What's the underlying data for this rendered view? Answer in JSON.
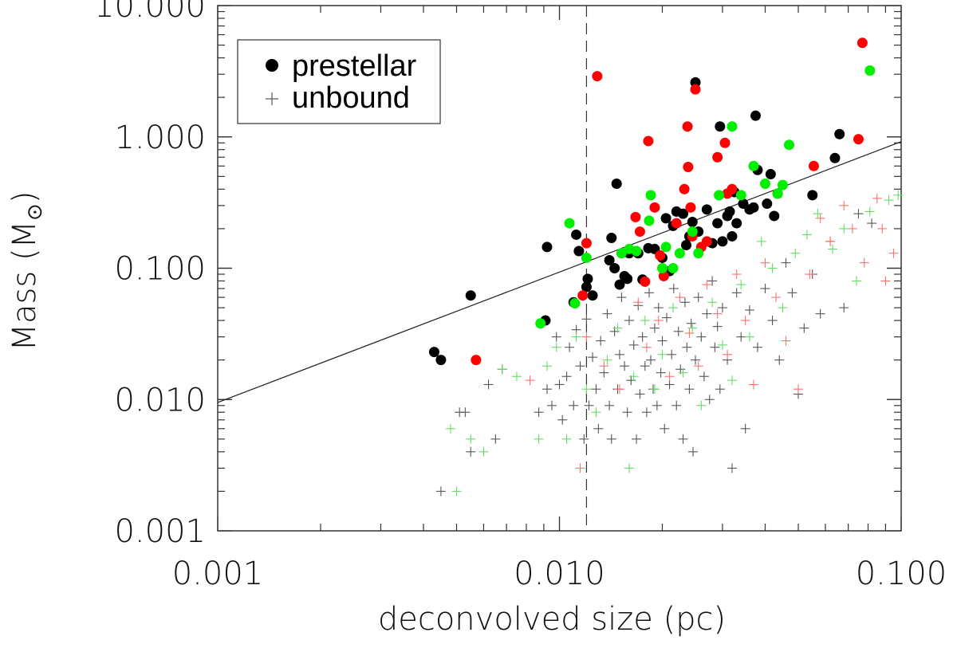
{
  "chart_data": {
    "type": "scatter",
    "xscale": "log",
    "yscale": "log",
    "xlim": [
      0.001,
      0.1
    ],
    "ylim": [
      0.001,
      10
    ],
    "xlabel": "deconvolved size (pc)",
    "ylabel": "Mass (M⊙)",
    "ylabel_main": "Mass (M",
    "ylabel_end": ")",
    "x_tick_labels": [
      "0.001",
      "0.010",
      "0.100"
    ],
    "x_ticks": [
      0.001,
      0.01,
      0.1
    ],
    "y_tick_labels": [
      "0.001",
      "0.010",
      "0.100",
      "1.000",
      "10.000"
    ],
    "y_ticks": [
      0.001,
      0.01,
      0.1,
      1,
      10
    ],
    "vertical_line_x": 0.012,
    "reference_line": [
      [
        0.001,
        0.0095
      ],
      [
        0.1,
        0.92
      ]
    ],
    "legend": {
      "position": "top-left",
      "entries": [
        {
          "label": "prestellar",
          "marker": "filled-circle"
        },
        {
          "label": "unbound",
          "marker": "plus"
        }
      ]
    },
    "colors": {
      "black": "#000000",
      "red": "#ff0000",
      "green": "#00ee00",
      "grey": "#555555",
      "light_red": "#ff7070",
      "light_green": "#66dd66"
    },
    "series": [
      {
        "name": "prestellar (black)",
        "marker": "circle",
        "color": "black",
        "points": [
          [
            0.0043,
            0.023
          ],
          [
            0.0045,
            0.02
          ],
          [
            0.0055,
            0.062
          ],
          [
            0.0091,
            0.04
          ],
          [
            0.0092,
            0.145
          ],
          [
            0.011,
            0.055
          ],
          [
            0.0112,
            0.18
          ],
          [
            0.0114,
            0.135
          ],
          [
            0.012,
            0.072
          ],
          [
            0.0121,
            0.083
          ],
          [
            0.0125,
            0.062
          ],
          [
            0.014,
            0.115
          ],
          [
            0.0142,
            0.17
          ],
          [
            0.0145,
            0.1
          ],
          [
            0.0147,
            0.44
          ],
          [
            0.015,
            0.075
          ],
          [
            0.0155,
            0.087
          ],
          [
            0.0158,
            0.083
          ],
          [
            0.016,
            0.13
          ],
          [
            0.017,
            0.13
          ],
          [
            0.0175,
            0.082
          ],
          [
            0.0182,
            0.142
          ],
          [
            0.019,
            0.14
          ],
          [
            0.02,
            0.12
          ],
          [
            0.0205,
            0.24
          ],
          [
            0.021,
            0.095
          ],
          [
            0.0215,
            0.21
          ],
          [
            0.022,
            0.27
          ],
          [
            0.023,
            0.26
          ],
          [
            0.0235,
            0.15
          ],
          [
            0.024,
            0.175
          ],
          [
            0.0245,
            0.225
          ],
          [
            0.025,
            2.6
          ],
          [
            0.0255,
            0.19
          ],
          [
            0.027,
            0.28
          ],
          [
            0.028,
            0.155
          ],
          [
            0.029,
            0.22
          ],
          [
            0.0295,
            1.2
          ],
          [
            0.03,
            0.16
          ],
          [
            0.031,
            0.25
          ],
          [
            0.0315,
            0.27
          ],
          [
            0.032,
            0.175
          ],
          [
            0.0325,
            0.38
          ],
          [
            0.033,
            0.22
          ],
          [
            0.0345,
            0.31
          ],
          [
            0.036,
            0.28
          ],
          [
            0.037,
            0.29
          ],
          [
            0.0375,
            1.45
          ],
          [
            0.038,
            0.56
          ],
          [
            0.0405,
            0.31
          ],
          [
            0.0415,
            0.52
          ],
          [
            0.0425,
            0.25
          ],
          [
            0.0435,
            0.37
          ],
          [
            0.055,
            0.36
          ],
          [
            0.064,
            0.69
          ],
          [
            0.066,
            1.05
          ]
        ]
      },
      {
        "name": "prestellar (red)",
        "marker": "circle",
        "color": "red",
        "points": [
          [
            0.0057,
            0.02
          ],
          [
            0.0117,
            0.062
          ],
          [
            0.012,
            0.155
          ],
          [
            0.0129,
            2.9
          ],
          [
            0.0167,
            0.245
          ],
          [
            0.0172,
            0.19
          ],
          [
            0.0178,
            0.079
          ],
          [
            0.0182,
            0.93
          ],
          [
            0.019,
            0.29
          ],
          [
            0.0197,
            0.125
          ],
          [
            0.0202,
            0.087
          ],
          [
            0.022,
            0.22
          ],
          [
            0.0232,
            0.4
          ],
          [
            0.0237,
            1.2
          ],
          [
            0.0238,
            0.59
          ],
          [
            0.0242,
            0.29
          ],
          [
            0.0245,
            0.175
          ],
          [
            0.025,
            2.3
          ],
          [
            0.026,
            0.145
          ],
          [
            0.027,
            0.16
          ],
          [
            0.029,
            0.7
          ],
          [
            0.0305,
            0.9
          ],
          [
            0.031,
            0.37
          ],
          [
            0.032,
            0.4
          ],
          [
            0.0555,
            0.6
          ],
          [
            0.075,
            0.96
          ],
          [
            0.077,
            5.2
          ]
        ]
      },
      {
        "name": "prestellar (green)",
        "marker": "circle",
        "color": "green",
        "points": [
          [
            0.0088,
            0.038
          ],
          [
            0.0107,
            0.22
          ],
          [
            0.0111,
            0.054
          ],
          [
            0.012,
            0.12
          ],
          [
            0.0152,
            0.13
          ],
          [
            0.016,
            0.14
          ],
          [
            0.0168,
            0.135
          ],
          [
            0.0183,
            0.23
          ],
          [
            0.0185,
            0.36
          ],
          [
            0.02,
            0.1
          ],
          [
            0.0205,
            0.145
          ],
          [
            0.0215,
            0.1
          ],
          [
            0.0225,
            0.13
          ],
          [
            0.0245,
            0.19
          ],
          [
            0.0255,
            0.13
          ],
          [
            0.0293,
            0.36
          ],
          [
            0.032,
            1.2
          ],
          [
            0.034,
            0.36
          ],
          [
            0.037,
            0.6
          ],
          [
            0.04,
            0.44
          ],
          [
            0.0435,
            0.37
          ],
          [
            0.045,
            0.43
          ],
          [
            0.047,
            0.87
          ],
          [
            0.081,
            3.2
          ]
        ]
      },
      {
        "name": "unbound (grey)",
        "marker": "plus",
        "color": "grey",
        "points": [
          [
            0.0045,
            0.002
          ],
          [
            0.0051,
            0.008
          ],
          [
            0.0053,
            0.008
          ],
          [
            0.0055,
            0.004
          ],
          [
            0.0062,
            0.013
          ],
          [
            0.0065,
            0.005
          ],
          [
            0.0068,
            0.017
          ],
          [
            0.0087,
            0.008
          ],
          [
            0.0092,
            0.012
          ],
          [
            0.0095,
            0.009
          ],
          [
            0.0098,
            0.03
          ],
          [
            0.01,
            0.013
          ],
          [
            0.0102,
            0.007
          ],
          [
            0.0105,
            0.015
          ],
          [
            0.0107,
            0.025
          ],
          [
            0.011,
            0.009
          ],
          [
            0.0112,
            0.034
          ],
          [
            0.0115,
            0.018
          ],
          [
            0.0118,
            0.005
          ],
          [
            0.012,
            0.041
          ],
          [
            0.0122,
            0.009
          ],
          [
            0.0125,
            0.021
          ],
          [
            0.0128,
            0.012
          ],
          [
            0.013,
            0.006
          ],
          [
            0.0132,
            0.028
          ],
          [
            0.0135,
            0.016
          ],
          [
            0.0138,
            0.045
          ],
          [
            0.014,
            0.009
          ],
          [
            0.0142,
            0.005
          ],
          [
            0.0145,
            0.033
          ],
          [
            0.0148,
            0.012
          ],
          [
            0.015,
            0.022
          ],
          [
            0.0152,
            0.06
          ],
          [
            0.0155,
            0.018
          ],
          [
            0.0158,
            0.008
          ],
          [
            0.016,
            0.04
          ],
          [
            0.0162,
            0.014
          ],
          [
            0.0165,
            0.026
          ],
          [
            0.0168,
            0.005
          ],
          [
            0.017,
            0.052
          ],
          [
            0.0172,
            0.011
          ],
          [
            0.0175,
            0.03
          ],
          [
            0.0178,
            0.018
          ],
          [
            0.018,
            0.008
          ],
          [
            0.0183,
            0.065
          ],
          [
            0.0185,
            0.02
          ],
          [
            0.0188,
            0.012
          ],
          [
            0.019,
            0.035
          ],
          [
            0.0193,
            0.009
          ],
          [
            0.0195,
            0.05
          ],
          [
            0.0198,
            0.016
          ],
          [
            0.02,
            0.028
          ],
          [
            0.0203,
            0.006
          ],
          [
            0.0206,
            0.042
          ],
          [
            0.021,
            0.013
          ],
          [
            0.0213,
            0.022
          ],
          [
            0.0216,
            0.07
          ],
          [
            0.022,
            0.009
          ],
          [
            0.0223,
            0.033
          ],
          [
            0.0226,
            0.017
          ],
          [
            0.023,
            0.005
          ],
          [
            0.0233,
            0.055
          ],
          [
            0.0236,
            0.025
          ],
          [
            0.024,
            0.012
          ],
          [
            0.0243,
            0.038
          ],
          [
            0.0246,
            0.004
          ],
          [
            0.025,
            0.02
          ],
          [
            0.0255,
            0.06
          ],
          [
            0.026,
            0.03
          ],
          [
            0.0265,
            0.015
          ],
          [
            0.027,
            0.045
          ],
          [
            0.0275,
            0.01
          ],
          [
            0.028,
            0.08
          ],
          [
            0.0285,
            0.025
          ],
          [
            0.029,
            0.036
          ],
          [
            0.0295,
            0.012
          ],
          [
            0.03,
            0.05
          ],
          [
            0.031,
            0.02
          ],
          [
            0.032,
            0.003
          ],
          [
            0.033,
            0.065
          ],
          [
            0.034,
            0.03
          ],
          [
            0.035,
            0.006
          ],
          [
            0.036,
            0.048
          ],
          [
            0.038,
            0.025
          ],
          [
            0.04,
            0.07
          ],
          [
            0.042,
            0.04
          ],
          [
            0.044,
            0.02
          ],
          [
            0.046,
            0.11
          ],
          [
            0.048,
            0.065
          ],
          [
            0.05,
            0.011
          ],
          [
            0.052,
            0.035
          ],
          [
            0.055,
            0.09
          ],
          [
            0.058,
            0.045
          ],
          [
            0.062,
            0.16
          ],
          [
            0.068,
            0.05
          ],
          [
            0.075,
            0.26
          ],
          [
            0.082,
            0.22
          ]
        ]
      },
      {
        "name": "unbound (red)",
        "marker": "plus",
        "color": "light_red",
        "points": [
          [
            0.0082,
            0.014
          ],
          [
            0.0115,
            0.003
          ],
          [
            0.012,
            0.03
          ],
          [
            0.0135,
            0.018
          ],
          [
            0.015,
            0.012
          ],
          [
            0.017,
            0.055
          ],
          [
            0.018,
            0.025
          ],
          [
            0.0195,
            0.04
          ],
          [
            0.021,
            0.015
          ],
          [
            0.0225,
            0.06
          ],
          [
            0.024,
            0.032
          ],
          [
            0.0255,
            0.018
          ],
          [
            0.027,
            0.075
          ],
          [
            0.029,
            0.045
          ],
          [
            0.031,
            0.022
          ],
          [
            0.033,
            0.09
          ],
          [
            0.035,
            0.04
          ],
          [
            0.037,
            0.013
          ],
          [
            0.04,
            0.11
          ],
          [
            0.043,
            0.06
          ],
          [
            0.046,
            0.028
          ],
          [
            0.05,
            0.012
          ],
          [
            0.054,
            0.09
          ],
          [
            0.058,
            0.24
          ],
          [
            0.062,
            0.16
          ],
          [
            0.068,
            0.3
          ],
          [
            0.072,
            0.2
          ],
          [
            0.078,
            0.11
          ],
          [
            0.085,
            0.34
          ],
          [
            0.09,
            0.08
          ],
          [
            0.095,
            0.13
          ],
          [
            0.088,
            0.2
          ]
        ]
      },
      {
        "name": "unbound (green)",
        "marker": "plus",
        "color": "light_green",
        "points": [
          [
            0.0048,
            0.006
          ],
          [
            0.005,
            0.002
          ],
          [
            0.0055,
            0.005
          ],
          [
            0.006,
            0.004
          ],
          [
            0.0068,
            0.017
          ],
          [
            0.0075,
            0.015
          ],
          [
            0.0087,
            0.005
          ],
          [
            0.0092,
            0.018
          ],
          [
            0.0098,
            0.025
          ],
          [
            0.0105,
            0.005
          ],
          [
            0.0112,
            0.03
          ],
          [
            0.012,
            0.012
          ],
          [
            0.0128,
            0.008
          ],
          [
            0.0138,
            0.02
          ],
          [
            0.0148,
            0.035
          ],
          [
            0.016,
            0.003
          ],
          [
            0.0165,
            0.015
          ],
          [
            0.0178,
            0.04
          ],
          [
            0.019,
            0.012
          ],
          [
            0.02,
            0.022
          ],
          [
            0.0215,
            0.05
          ],
          [
            0.023,
            0.016
          ],
          [
            0.0245,
            0.035
          ],
          [
            0.026,
            0.009
          ],
          [
            0.028,
            0.055
          ],
          [
            0.03,
            0.026
          ],
          [
            0.032,
            0.014
          ],
          [
            0.034,
            0.075
          ],
          [
            0.036,
            0.03
          ],
          [
            0.039,
            0.16
          ],
          [
            0.042,
            0.1
          ],
          [
            0.045,
            0.05
          ],
          [
            0.049,
            0.13
          ],
          [
            0.053,
            0.18
          ],
          [
            0.057,
            0.26
          ],
          [
            0.063,
            0.14
          ],
          [
            0.068,
            0.2
          ],
          [
            0.074,
            0.08
          ],
          [
            0.081,
            0.27
          ],
          [
            0.092,
            0.33
          ],
          [
            0.098,
            0.36
          ]
        ]
      }
    ]
  }
}
